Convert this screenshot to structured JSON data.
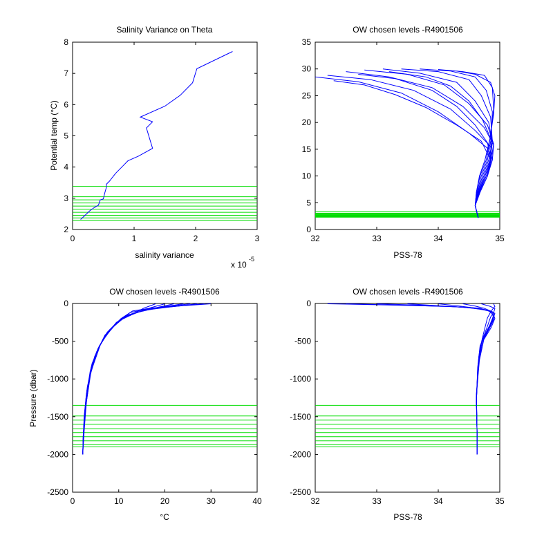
{
  "colors": {
    "data": "#0000ff",
    "levels": "#00dd00",
    "axes": "#000000",
    "background": "#ffffff"
  },
  "chart_data": [
    {
      "id": "salvar",
      "type": "line",
      "title": "Salinity Variance on Theta",
      "xlabel": "salinity variance",
      "ylabel": "Potential temp (°C)",
      "x_exponent_label": "x 10",
      "x_exponent_power": "-5",
      "xlim": [
        0,
        3
      ],
      "ylim": [
        2,
        8
      ],
      "xticks": [
        0,
        1,
        2,
        3
      ],
      "yticks": [
        2,
        3,
        4,
        5,
        6,
        7,
        8
      ],
      "xtick_labels": [
        "0",
        "1",
        "2",
        "3"
      ],
      "ytick_labels": [
        "2",
        "3",
        "4",
        "5",
        "6",
        "7",
        "8"
      ],
      "series": [
        {
          "color": "#0000ff",
          "x": [
            0.13,
            0.2,
            0.28,
            0.35,
            0.42,
            0.45,
            0.5,
            0.52,
            0.55,
            0.55,
            0.6,
            0.7,
            0.8,
            0.9,
            1.07,
            1.3,
            1.2,
            1.3,
            1.1,
            1.5,
            1.75,
            1.95,
            2.02,
            2.6
          ],
          "y": [
            2.32,
            2.45,
            2.6,
            2.7,
            2.78,
            2.95,
            2.98,
            3.15,
            3.35,
            3.45,
            3.55,
            3.8,
            4.0,
            4.2,
            4.35,
            4.6,
            5.25,
            5.45,
            5.6,
            5.95,
            6.3,
            6.7,
            7.15,
            7.7
          ]
        }
      ],
      "levels": [
        2.3,
        2.37,
        2.45,
        2.55,
        2.65,
        2.75,
        2.85,
        2.95,
        3.05,
        3.38
      ]
    },
    {
      "id": "ts",
      "type": "line",
      "title": "OW chosen levels -R4901506",
      "xlabel": "PSS-78",
      "ylabel": "",
      "xlim": [
        32,
        35
      ],
      "ylim": [
        0,
        35
      ],
      "xticks": [
        32,
        33,
        34,
        35
      ],
      "yticks": [
        0,
        5,
        10,
        15,
        20,
        25,
        30,
        35
      ],
      "xtick_labels": [
        "32",
        "33",
        "34",
        "35"
      ],
      "ytick_labels": [
        "0",
        "5",
        "10",
        "15",
        "20",
        "25",
        "30",
        "35"
      ],
      "series": [
        {
          "color": "#0000ff",
          "x": [
            32.2,
            32.9,
            33.6,
            34.2,
            34.6,
            34.85,
            34.88,
            34.8,
            34.68,
            34.6,
            34.65
          ],
          "y": [
            28.8,
            28.0,
            26.0,
            22.5,
            18.5,
            15.5,
            13.0,
            10.0,
            7.0,
            4.5,
            2.2
          ]
        },
        {
          "color": "#0000ff",
          "x": [
            32.5,
            33.2,
            33.9,
            34.4,
            34.75,
            34.9,
            34.88,
            34.78,
            34.66,
            34.6,
            34.65
          ],
          "y": [
            29.5,
            28.5,
            26.5,
            23.0,
            19.0,
            15.8,
            13.0,
            10.0,
            7.0,
            4.5,
            2.2
          ]
        },
        {
          "color": "#0000ff",
          "x": [
            32.8,
            33.5,
            34.1,
            34.5,
            34.8,
            34.9,
            34.86,
            34.76,
            34.66,
            34.6,
            34.65
          ],
          "y": [
            29.8,
            29.0,
            27.0,
            23.5,
            19.5,
            16.0,
            13.0,
            10.0,
            7.0,
            4.5,
            2.2
          ]
        },
        {
          "color": "#0000ff",
          "x": [
            33.1,
            33.7,
            34.3,
            34.6,
            34.82,
            34.88,
            34.84,
            34.74,
            34.65,
            34.6,
            34.65
          ],
          "y": [
            30.0,
            29.2,
            27.5,
            24.0,
            20.0,
            16.2,
            13.0,
            10.0,
            7.0,
            4.5,
            2.2
          ]
        },
        {
          "color": "#0000ff",
          "x": [
            33.4,
            34.0,
            34.5,
            34.7,
            34.85,
            34.88,
            34.82,
            34.72,
            34.64,
            34.6,
            34.65
          ],
          "y": [
            30.0,
            29.5,
            28.0,
            25.0,
            21.0,
            16.5,
            13.0,
            10.0,
            7.0,
            4.5,
            2.2
          ]
        },
        {
          "color": "#0000ff",
          "x": [
            33.7,
            34.2,
            34.6,
            34.78,
            34.88,
            34.86,
            34.8,
            34.7,
            34.63,
            34.6,
            34.65
          ],
          "y": [
            30.0,
            29.6,
            28.5,
            26.0,
            22.0,
            17.0,
            13.0,
            10.0,
            7.0,
            4.5,
            2.2
          ]
        },
        {
          "color": "#0000ff",
          "x": [
            34.0,
            34.4,
            34.75,
            34.88,
            34.9,
            34.85,
            34.78,
            34.68,
            34.62,
            34.6,
            34.65
          ],
          "y": [
            29.9,
            29.5,
            28.8,
            26.5,
            22.5,
            17.5,
            13.0,
            10.0,
            7.0,
            4.5,
            2.2
          ]
        },
        {
          "color": "#0000ff",
          "x": [
            34.3,
            34.6,
            34.85,
            34.92,
            34.9,
            34.84,
            34.76,
            34.67,
            34.62,
            34.6,
            34.65
          ],
          "y": [
            29.6,
            29.0,
            27.5,
            25.0,
            21.5,
            17.0,
            13.0,
            10.0,
            7.0,
            4.5,
            2.2
          ]
        },
        {
          "color": "#0000ff",
          "x": [
            32.0,
            32.7,
            33.4,
            34.0,
            34.5,
            34.8,
            34.86,
            34.8,
            34.68,
            34.6,
            34.65
          ],
          "y": [
            28.5,
            27.6,
            25.5,
            22.0,
            18.0,
            15.2,
            13.0,
            10.0,
            7.0,
            4.5,
            2.2
          ]
        },
        {
          "color": "#0000ff",
          "x": [
            32.3,
            32.8,
            33.3,
            33.8,
            34.3,
            34.7,
            34.85,
            34.8,
            34.68,
            34.6,
            34.65
          ],
          "y": [
            27.8,
            27.0,
            25.2,
            22.8,
            19.5,
            16.5,
            13.0,
            10.0,
            7.0,
            4.5,
            2.2
          ]
        },
        {
          "color": "#0000ff",
          "x": [
            32.7,
            33.3,
            33.9,
            34.3,
            34.6,
            34.8,
            34.86,
            34.78,
            34.67,
            34.6,
            34.65
          ],
          "y": [
            29.0,
            28.2,
            26.0,
            23.0,
            19.5,
            16.2,
            13.0,
            10.0,
            7.0,
            4.5,
            2.2
          ]
        },
        {
          "color": "#0000ff",
          "x": [
            33.2,
            33.8,
            34.2,
            34.5,
            34.72,
            34.86,
            34.85,
            34.76,
            34.66,
            34.6,
            34.65
          ],
          "y": [
            29.5,
            28.5,
            26.8,
            24.0,
            20.5,
            16.8,
            13.0,
            10.0,
            7.0,
            4.5,
            2.2
          ]
        }
      ],
      "levels": [
        2.3,
        2.37,
        2.45,
        2.55,
        2.65,
        2.75,
        2.85,
        2.95,
        3.05,
        3.38
      ]
    },
    {
      "id": "tp",
      "type": "line",
      "title": "OW chosen levels -R4901506",
      "xlabel": "°C",
      "ylabel": "Pressure (dbar)",
      "xlim": [
        0,
        40
      ],
      "ylim": [
        -2500,
        0
      ],
      "xticks": [
        0,
        10,
        20,
        30,
        40
      ],
      "yticks": [
        0,
        -500,
        -1000,
        -1500,
        -2000,
        -2500
      ],
      "xtick_labels": [
        "0",
        "10",
        "20",
        "30",
        "40"
      ],
      "ytick_labels": [
        "0",
        "-500",
        "-1000",
        "-1500",
        "-2000",
        "-2500"
      ],
      "series": [
        {
          "color": "#0000ff",
          "x": [
            30.0,
            24.0,
            17.0,
            13.0,
            10.5,
            8.0,
            6.0,
            4.0,
            3.0,
            2.5,
            2.2
          ],
          "y": [
            -5,
            -30,
            -60,
            -100,
            -200,
            -350,
            -550,
            -900,
            -1300,
            -1700,
            -2000
          ]
        },
        {
          "color": "#0000ff",
          "x": [
            28.5,
            23.0,
            16.0,
            12.5,
            10.0,
            7.5,
            5.5,
            3.8,
            2.9,
            2.4,
            2.2
          ],
          "y": [
            -5,
            -35,
            -75,
            -120,
            -230,
            -380,
            -600,
            -950,
            -1350,
            -1700,
            -2000
          ]
        },
        {
          "color": "#0000ff",
          "x": [
            27.0,
            22.0,
            15.5,
            12.0,
            9.5,
            7.0,
            5.2,
            3.6,
            2.8,
            2.4,
            2.2
          ],
          "y": [
            -5,
            -40,
            -90,
            -150,
            -270,
            -420,
            -650,
            -1000,
            -1400,
            -1750,
            -2000
          ]
        },
        {
          "color": "#0000ff",
          "x": [
            25.5,
            20.5,
            15.0,
            11.5,
            9.0,
            6.6,
            4.8,
            3.4,
            2.7,
            2.3,
            2.2
          ],
          "y": [
            -5,
            -40,
            -100,
            -170,
            -300,
            -470,
            -700,
            -1050,
            -1400,
            -1750,
            -2000
          ]
        },
        {
          "color": "#0000ff",
          "x": [
            24.0,
            19.5,
            14.5,
            11.0,
            8.5,
            6.2,
            4.5,
            3.2,
            2.6,
            2.3,
            2.2
          ],
          "y": [
            -5,
            -45,
            -110,
            -190,
            -330,
            -520,
            -760,
            -1100,
            -1450,
            -1750,
            -2000
          ]
        },
        {
          "color": "#0000ff",
          "x": [
            22.0,
            18.5,
            14.0,
            10.5,
            8.0,
            5.8,
            4.2,
            3.1,
            2.6,
            2.3,
            2.2
          ],
          "y": [
            -5,
            -50,
            -120,
            -210,
            -360,
            -560,
            -800,
            -1150,
            -1500,
            -1780,
            -2000
          ]
        },
        {
          "color": "#0000ff",
          "x": [
            20.0,
            17.0,
            13.5,
            10.0,
            7.6,
            5.5,
            4.0,
            3.0,
            2.5,
            2.3,
            2.2
          ],
          "y": [
            -5,
            -55,
            -130,
            -230,
            -390,
            -600,
            -850,
            -1200,
            -1500,
            -1780,
            -2000
          ]
        },
        {
          "color": "#0000ff",
          "x": [
            18.0,
            15.5,
            13.0,
            9.5,
            7.2,
            5.2,
            3.8,
            2.9,
            2.5,
            2.3,
            2.2
          ],
          "y": [
            -5,
            -60,
            -140,
            -250,
            -420,
            -640,
            -900,
            -1250,
            -1550,
            -1800,
            -2000
          ]
        }
      ],
      "levels": [
        -1350,
        -1490,
        -1545,
        -1600,
        -1660,
        -1710,
        -1765,
        -1820,
        -1870,
        -1900
      ]
    },
    {
      "id": "sp",
      "type": "line",
      "title": "OW chosen levels -R4901506",
      "xlabel": "PSS-78",
      "ylabel": "",
      "xlim": [
        32,
        35
      ],
      "ylim": [
        -2500,
        0
      ],
      "xticks": [
        32,
        33,
        34,
        35
      ],
      "yticks": [
        0,
        -500,
        -1000,
        -1500,
        -2000,
        -2500
      ],
      "xtick_labels": [
        "32",
        "33",
        "34",
        "35"
      ],
      "ytick_labels": [
        "0",
        "-500",
        "-1000",
        "-1500",
        "-2000",
        "-2500"
      ],
      "series": [
        {
          "color": "#0000ff",
          "x": [
            32.2,
            33.2,
            34.2,
            34.65,
            34.85,
            34.9,
            34.85,
            34.72,
            34.66,
            34.62,
            34.63,
            34.63
          ],
          "y": [
            -5,
            -20,
            -40,
            -60,
            -100,
            -180,
            -300,
            -450,
            -700,
            -1200,
            -1700,
            -2000
          ]
        },
        {
          "color": "#0000ff",
          "x": [
            32.5,
            33.5,
            34.3,
            34.7,
            34.88,
            34.92,
            34.86,
            34.74,
            34.67,
            34.62,
            34.63,
            34.63
          ],
          "y": [
            -5,
            -25,
            -45,
            -70,
            -110,
            -200,
            -320,
            -480,
            -750,
            -1200,
            -1700,
            -2000
          ]
        },
        {
          "color": "#0000ff",
          "x": [
            33.0,
            33.8,
            34.4,
            34.75,
            34.9,
            34.9,
            34.82,
            34.72,
            34.66,
            34.62,
            34.63,
            34.63
          ],
          "y": [
            -5,
            -25,
            -50,
            -80,
            -120,
            -220,
            -350,
            -500,
            -780,
            -1250,
            -1700,
            -2000
          ]
        },
        {
          "color": "#0000ff",
          "x": [
            33.5,
            34.0,
            34.5,
            34.78,
            34.92,
            34.88,
            34.8,
            34.7,
            34.65,
            34.62,
            34.63,
            34.63
          ],
          "y": [
            -5,
            -30,
            -55,
            -90,
            -130,
            -240,
            -370,
            -520,
            -800,
            -1250,
            -1700,
            -2000
          ]
        },
        {
          "color": "#0000ff",
          "x": [
            34.0,
            34.3,
            34.6,
            34.82,
            34.9,
            34.86,
            34.78,
            34.7,
            34.65,
            34.62,
            34.63,
            34.63
          ],
          "y": [
            -5,
            -30,
            -60,
            -100,
            -150,
            -260,
            -390,
            -540,
            -820,
            -1250,
            -1700,
            -2000
          ]
        },
        {
          "color": "#0000ff",
          "x": [
            34.4,
            34.6,
            34.75,
            34.88,
            34.9,
            34.84,
            34.76,
            34.68,
            34.64,
            34.62,
            34.63,
            34.63
          ],
          "y": [
            -5,
            -35,
            -65,
            -110,
            -160,
            -280,
            -410,
            -560,
            -850,
            -1300,
            -1700,
            -2000
          ]
        },
        {
          "color": "#0000ff",
          "x": [
            34.7,
            34.85,
            34.92,
            34.9,
            34.85,
            34.8,
            34.74,
            34.68,
            34.64,
            34.62,
            34.63,
            34.63
          ],
          "y": [
            -5,
            -40,
            -70,
            -120,
            -180,
            -300,
            -430,
            -580,
            -870,
            -1300,
            -1700,
            -2000
          ]
        },
        {
          "color": "#0000ff",
          "x": [
            34.9,
            34.92,
            34.88,
            34.84,
            34.8,
            34.76,
            34.72,
            34.68,
            34.64,
            34.62,
            34.63,
            34.63
          ],
          "y": [
            -5,
            -40,
            -80,
            -130,
            -190,
            -320,
            -450,
            -600,
            -900,
            -1300,
            -1700,
            -2000
          ]
        }
      ],
      "levels": [
        -1350,
        -1490,
        -1545,
        -1600,
        -1660,
        -1710,
        -1765,
        -1820,
        -1870,
        -1900
      ]
    }
  ]
}
